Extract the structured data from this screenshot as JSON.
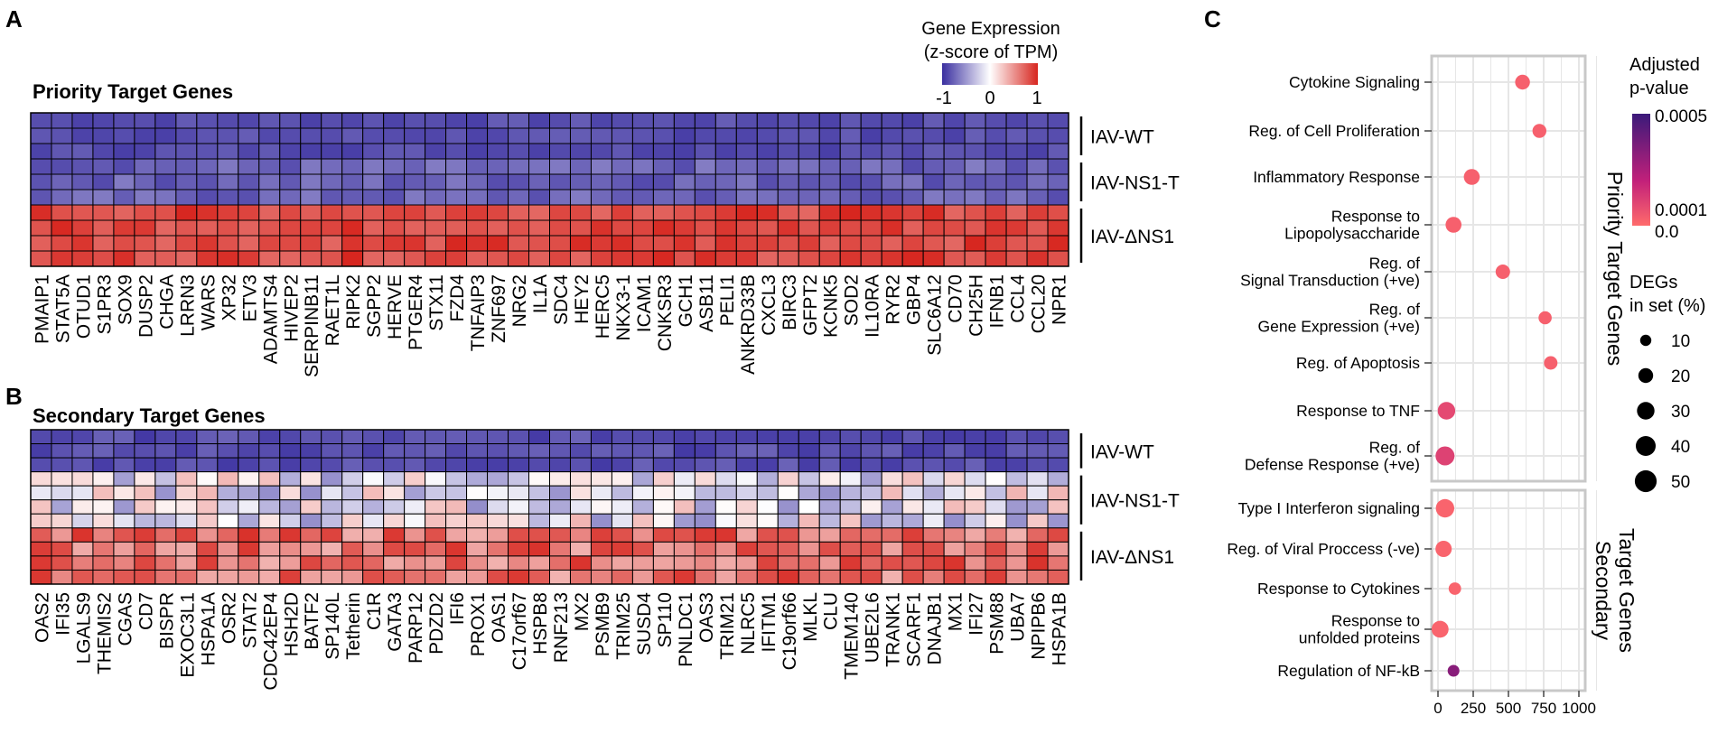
{
  "panel_labels": {
    "a": "A",
    "b": "B",
    "c": "C"
  },
  "colors": {
    "low": "#3a2fa0",
    "mid": "#ffffff",
    "high": "#d7261f",
    "dot_high": "#3b1a7a",
    "dot_mid": "#c2207a",
    "dot_low": "#ff6b6b",
    "frame": "#c8c8c8",
    "grid": "#e6e6e6"
  },
  "legend_expr": {
    "title1": "Gene Expression",
    "title2": "(z-score of TPM)",
    "tick_min": "-1",
    "tick_mid": "0",
    "tick_max": "1",
    "range": [
      -1,
      1
    ]
  },
  "chart_data": [
    {
      "type": "heatmap",
      "title": "Priority Target Genes",
      "genes": [
        "PMAIP1",
        "STAT5A",
        "OTUD1",
        "S1PR3",
        "SOX9",
        "DUSP2",
        "CHGA",
        "LRRN3",
        "WARS",
        "XP32",
        "ETV3",
        "ADAMTS4",
        "HIVEP2",
        "SERPINB11",
        "RAET1L",
        "RIPK2",
        "SGPP2",
        "HERVE",
        "PTGER4",
        "STX11",
        "FZD4",
        "TNFAIP3",
        "ZNF697",
        "NRG2",
        "IL1A",
        "SDC4",
        "HEY2",
        "HERC5",
        "NKX3-1",
        "ICAM1",
        "CNKSR3",
        "GCH1",
        "ASB11",
        "PELI1",
        "ANKRD33B",
        "CXCL3",
        "BIRC3",
        "GFPT2",
        "KCNK5",
        "SOD2",
        "IL10RA",
        "RYR2",
        "GBP4",
        "SLC6A12",
        "CD70",
        "CH25H",
        "IFNB1",
        "CCL4",
        "CCL20",
        "NPR1"
      ],
      "groups": [
        {
          "name": "IAV-WT",
          "rows": 3
        },
        {
          "name": "IAV-NS1-T",
          "rows": 3
        },
        {
          "name": "IAV-ΔNS1",
          "rows": 4
        }
      ],
      "group_means": [
        -0.85,
        -0.75,
        0.85
      ],
      "value_range": [
        -1,
        1
      ]
    },
    {
      "type": "heatmap",
      "title": "Secondary Target Genes",
      "genes": [
        "OAS2",
        "IFI35",
        "LGALS9",
        "THEMIS2",
        "CGAS",
        "CD7",
        "BISPR",
        "EXOC3L1",
        "HSPA1A",
        "OSR2",
        "STAT2",
        "CDC42EP4",
        "HSH2D",
        "BATF2",
        "SP140L",
        "Tetherin",
        "C1R",
        "GATA3",
        "PARP12",
        "PDZD2",
        "IFI6",
        "PROX1",
        "OAS1",
        "C17orf67",
        "HSPB8",
        "RNF213",
        "MX2",
        "PSMB9",
        "TRIM25",
        "SUSD4",
        "SP110",
        "PNLDC1",
        "OAS3",
        "TRIM21",
        "NLRC5",
        "IFITM1",
        "C19orf66",
        "MLKL",
        "CLU",
        "TMEM140",
        "UBE2L6",
        "TRANK1",
        "SCARF1",
        "DNAJB1",
        "MX1",
        "IFI27",
        "PSM88",
        "UBA7",
        "NPIPB6",
        "HSPA1B"
      ],
      "groups": [
        {
          "name": "IAV-WT",
          "rows": 3
        },
        {
          "name": "IAV-NS1-T",
          "rows": 4
        },
        {
          "name": "IAV-ΔNS1",
          "rows": 4
        }
      ],
      "group_means": [
        -0.85,
        -0.1,
        0.65
      ],
      "value_range": [
        -1,
        1
      ]
    },
    {
      "type": "scatter",
      "title": "",
      "xlabel": "",
      "x_range": [
        0,
        1000
      ],
      "x_ticks": [
        "0",
        "250",
        "500",
        "750",
        "1000"
      ],
      "x_tick_values": [
        0,
        250,
        500,
        750,
        1000
      ],
      "size_legend": {
        "title1": "DEGs",
        "title2": "in set (%)",
        "values": [
          10,
          20,
          30,
          40,
          50
        ],
        "labels": [
          "10",
          "20",
          "30",
          "40",
          "50"
        ]
      },
      "color_legend": {
        "title1": "Adjusted",
        "title2": "p-value",
        "labels": [
          "0.0005",
          "0.0001",
          "0.0"
        ],
        "values": [
          0.0005,
          0.0001,
          0.0
        ]
      },
      "facets": [
        {
          "name": "Priority Target Genes",
          "strip": [
            "Priority Target Genes"
          ],
          "terms": [
            {
              "label": [
                "Cytokine Signaling"
              ],
              "x": 600,
              "size": 20,
              "p": 3e-05
            },
            {
              "label": [
                "Reg. of Cell Proliferation"
              ],
              "x": 720,
              "size": 17,
              "p": 3e-05
            },
            {
              "label": [
                "Inflammatory Response"
              ],
              "x": 240,
              "size": 24,
              "p": 3e-05
            },
            {
              "label": [
                "Response to",
                "Lipopolysaccharide"
              ],
              "x": 110,
              "size": 24,
              "p": 3e-05
            },
            {
              "label": [
                "Reg. of",
                "Signal Transduction (+ve)"
              ],
              "x": 460,
              "size": 19,
              "p": 3e-05
            },
            {
              "label": [
                "Reg. of",
                "Gene Expression (+ve)"
              ],
              "x": 760,
              "size": 15,
              "p": 3e-05
            },
            {
              "label": [
                "Reg. of Apoptosis"
              ],
              "x": 800,
              "size": 16,
              "p": 3e-05
            },
            {
              "label": [
                "Response to TNF"
              ],
              "x": 60,
              "size": 30,
              "p": 9e-05
            },
            {
              "label": [
                "Reg. of",
                "Defense Response (+ve)"
              ],
              "x": 50,
              "size": 36,
              "p": 0.00011
            }
          ]
        },
        {
          "name": "Secondary Target Genes",
          "strip": [
            "Secondary",
            "Target Genes"
          ],
          "terms": [
            {
              "label": [
                "Type I Interferon signaling"
              ],
              "x": 50,
              "size": 34,
              "p": 2e-05
            },
            {
              "label": [
                "Reg. of Viral Proccess (-ve)"
              ],
              "x": 40,
              "size": 25,
              "p": 2e-05
            },
            {
              "label": [
                "Response to Cytokines"
              ],
              "x": 120,
              "size": 13,
              "p": 2e-05
            },
            {
              "label": [
                "Response to",
                "unfolded proteins"
              ],
              "x": 15,
              "size": 28,
              "p": 2e-05
            },
            {
              "label": [
                "Regulation of NF-kB"
              ],
              "x": 110,
              "size": 11,
              "p": 0.00033
            }
          ]
        }
      ]
    }
  ]
}
